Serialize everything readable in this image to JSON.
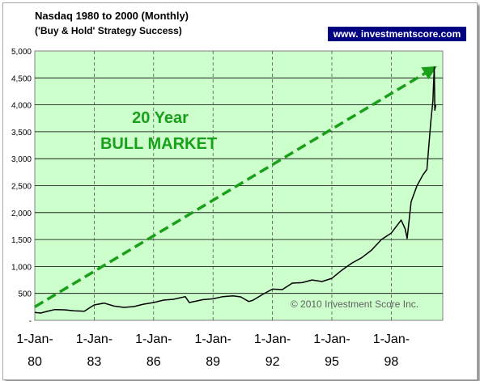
{
  "title": "Nasdaq 1980 to 2000  (Monthly)",
  "subtitle": "('Buy & Hold' Strategy Success)",
  "website_badge": "www. investmentscore.com",
  "copyright": "© 2010 Investment Score Inc.",
  "annotation": {
    "line1": "20 Year",
    "line2": "BULL MARKET"
  },
  "colors": {
    "plot_background": "#ccffcc",
    "series_line": "#000000",
    "annotation_text": "#1a9f1a",
    "trend_arrow": "#1a9f1a",
    "badge_background": "#000080",
    "badge_text": "#ffffff"
  },
  "chart_data": {
    "type": "line",
    "x_unit": "year",
    "xlim": [
      1980.0,
      2000.6
    ],
    "ylim": [
      0,
      5000
    ],
    "y_ticks": [
      0,
      500,
      1000,
      1500,
      2000,
      2500,
      3000,
      3500,
      4000,
      4500,
      5000
    ],
    "y_tick_labels": [
      "-",
      "500",
      "1,000",
      "1,500",
      "2,000",
      "2,500",
      "3,000",
      "3,500",
      "4,000",
      "4,500",
      "5,000"
    ],
    "x_ticks": [
      1980,
      1983,
      1986,
      1989,
      1992,
      1995,
      1998
    ],
    "x_tick_labels": [
      [
        "1-Jan-",
        "80"
      ],
      [
        "1-Jan-",
        "83"
      ],
      [
        "1-Jan-",
        "86"
      ],
      [
        "1-Jan-",
        "89"
      ],
      [
        "1-Jan-",
        "92"
      ],
      [
        "1-Jan-",
        "95"
      ],
      [
        "1-Jan-",
        "98"
      ]
    ],
    "grid": {
      "horizontal": "solid",
      "vertical": "dashed"
    },
    "series": [
      {
        "x": [
          1980.0,
          1980.3,
          1980.6,
          1981.0,
          1981.5,
          1982.0,
          1982.5,
          1982.8,
          1983.0,
          1983.5,
          1984.0,
          1984.5,
          1985.0,
          1985.5,
          1986.0,
          1986.5,
          1987.0,
          1987.6,
          1987.8,
          1988.0,
          1988.5,
          1989.0,
          1989.5,
          1990.0,
          1990.4,
          1990.8,
          1991.0,
          1991.5,
          1992.0,
          1992.5,
          1993.0,
          1993.5,
          1994.0,
          1994.5,
          1995.0,
          1995.5,
          1996.0,
          1996.5,
          1997.0,
          1997.5,
          1998.0,
          1998.5,
          1998.7,
          1998.8,
          1999.0,
          1999.3,
          1999.6,
          1999.8,
          2000.0,
          2000.1,
          2000.17,
          2000.2,
          2000.25
        ],
        "y": [
          145,
          135,
          165,
          200,
          195,
          175,
          170,
          240,
          285,
          320,
          265,
          240,
          255,
          300,
          330,
          375,
          390,
          440,
          330,
          345,
          385,
          400,
          440,
          455,
          435,
          350,
          370,
          480,
          580,
          570,
          690,
          700,
          750,
          720,
          780,
          930,
          1060,
          1160,
          1300,
          1500,
          1620,
          1860,
          1700,
          1520,
          2200,
          2500,
          2700,
          2800,
          3700,
          4070,
          4700,
          3900,
          4000
        ]
      }
    ],
    "trend_arrow": {
      "from": [
        1980.0,
        250
      ],
      "to": [
        2000.0,
        4650
      ]
    }
  }
}
